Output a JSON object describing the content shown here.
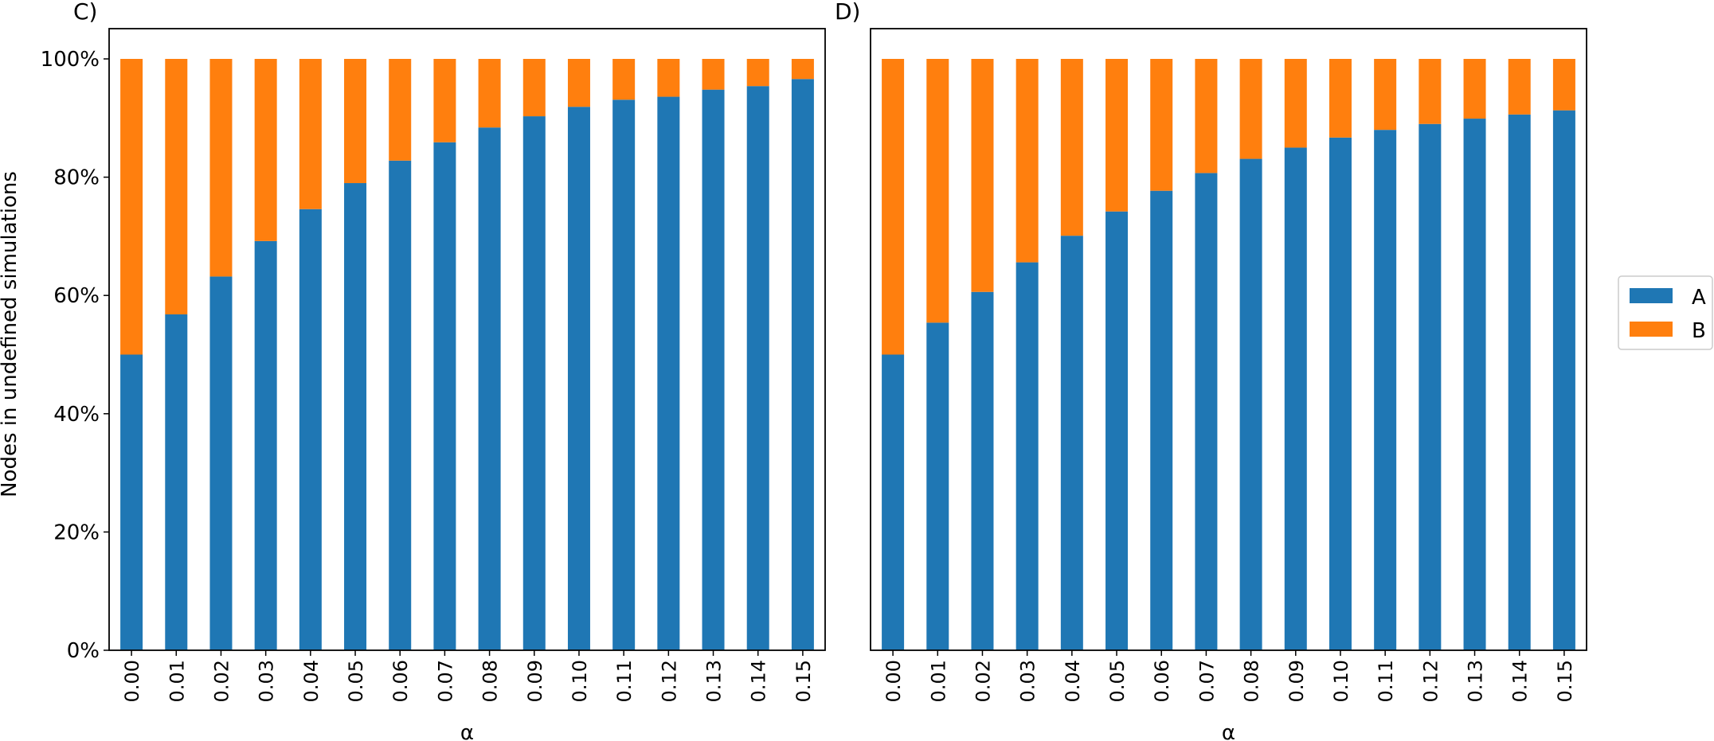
{
  "figure": {
    "ylabel": "Nodes in undefined simulations",
    "legend": {
      "placement": "right",
      "entries": [
        {
          "name": "A",
          "color": "#1f77b4"
        },
        {
          "name": "B",
          "color": "#ff7f0e"
        }
      ]
    }
  },
  "chart_data": [
    {
      "type": "bar",
      "stacked": true,
      "panel_label": "C)",
      "xlabel": "α",
      "ylabel": "Nodes in undefined simulations",
      "categories": [
        "0.00",
        "0.01",
        "0.02",
        "0.03",
        "0.04",
        "0.05",
        "0.06",
        "0.07",
        "0.08",
        "0.09",
        "0.10",
        "0.11",
        "0.12",
        "0.13",
        "0.14",
        "0.15"
      ],
      "series": [
        {
          "name": "A",
          "color": "#1f77b4",
          "values": [
            50.0,
            56.8,
            63.2,
            69.2,
            74.6,
            79.0,
            82.8,
            85.9,
            88.4,
            90.3,
            91.9,
            93.1,
            93.6,
            94.8,
            95.4,
            96.6
          ]
        },
        {
          "name": "B",
          "color": "#ff7f0e",
          "values": [
            50.0,
            43.2,
            36.8,
            30.8,
            25.4,
            21.0,
            17.2,
            14.1,
            11.6,
            9.7,
            8.1,
            6.9,
            6.4,
            5.2,
            4.6,
            3.4
          ]
        }
      ],
      "ylim": [
        0,
        100
      ],
      "yticks": [
        "0%",
        "20%",
        "40%",
        "60%",
        "80%",
        "100%"
      ],
      "grid": false
    },
    {
      "type": "bar",
      "stacked": true,
      "panel_label": "D)",
      "xlabel": "α",
      "categories": [
        "0.00",
        "0.01",
        "0.02",
        "0.03",
        "0.04",
        "0.05",
        "0.06",
        "0.07",
        "0.08",
        "0.09",
        "0.10",
        "0.11",
        "0.12",
        "0.13",
        "0.14",
        "0.15"
      ],
      "series": [
        {
          "name": "A",
          "color": "#1f77b4",
          "values": [
            50.0,
            55.4,
            60.6,
            65.6,
            70.1,
            74.2,
            77.7,
            80.7,
            83.1,
            85.0,
            86.7,
            88.0,
            89.0,
            89.9,
            90.6,
            91.3
          ]
        },
        {
          "name": "B",
          "color": "#ff7f0e",
          "values": [
            50.0,
            44.6,
            39.4,
            34.4,
            29.9,
            25.8,
            22.3,
            19.3,
            16.9,
            15.0,
            13.3,
            12.0,
            11.0,
            10.1,
            9.4,
            8.7
          ]
        }
      ],
      "ylim": [
        0,
        100
      ],
      "grid": false
    }
  ]
}
